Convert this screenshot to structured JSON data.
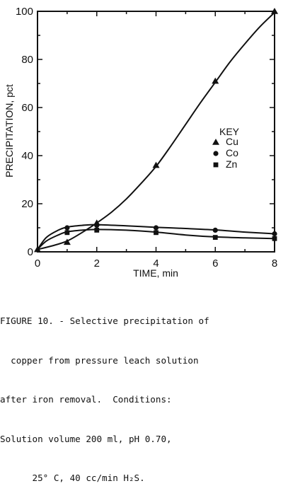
{
  "chart_data": {
    "type": "line",
    "xlabel": "TIME, min",
    "ylabel": "PRECIPITATION, pct",
    "xlim": [
      0,
      8
    ],
    "ylim": [
      0,
      100
    ],
    "xticks": [
      0,
      2,
      4,
      6,
      8
    ],
    "yticks": [
      0,
      20,
      40,
      60,
      80,
      100
    ],
    "grid": false,
    "legend_title": "KEY",
    "legend_position": "center-right",
    "series": [
      {
        "name": "Cu",
        "marker": "triangle",
        "x": [
          0,
          1,
          2,
          4,
          6,
          8
        ],
        "y": [
          1,
          4,
          12,
          36,
          71,
          100
        ],
        "curve": [
          [
            0,
            1
          ],
          [
            0.5,
            2.5
          ],
          [
            1,
            4.5
          ],
          [
            1.5,
            8
          ],
          [
            2,
            12
          ],
          [
            2.5,
            16.5
          ],
          [
            3,
            22
          ],
          [
            3.5,
            28.5
          ],
          [
            4,
            35.5
          ],
          [
            4.5,
            44
          ],
          [
            5,
            53
          ],
          [
            5.5,
            62
          ],
          [
            6,
            70.5
          ],
          [
            6.5,
            79
          ],
          [
            7,
            86.5
          ],
          [
            7.5,
            93.5
          ],
          [
            8,
            99.5
          ]
        ]
      },
      {
        "name": "Co",
        "marker": "circle",
        "x": [
          1,
          2,
          4,
          6,
          8
        ],
        "y": [
          10,
          11,
          10,
          9,
          7.5
        ],
        "curve": [
          [
            0,
            1
          ],
          [
            0.3,
            6
          ],
          [
            0.7,
            9
          ],
          [
            1,
            10.3
          ],
          [
            1.5,
            11
          ],
          [
            2,
            11.3
          ],
          [
            3,
            10.8
          ],
          [
            4,
            10.2
          ],
          [
            5,
            9.7
          ],
          [
            6,
            9.1
          ],
          [
            7,
            8.2
          ],
          [
            8,
            7.5
          ]
        ]
      },
      {
        "name": "Zn",
        "marker": "square",
        "x": [
          1,
          2,
          4,
          6,
          8
        ],
        "y": [
          8,
          9,
          8,
          6,
          5.5
        ],
        "curve": [
          [
            0,
            1
          ],
          [
            0.3,
            4.5
          ],
          [
            0.7,
            7
          ],
          [
            1,
            8.3
          ],
          [
            1.5,
            9
          ],
          [
            2,
            9.3
          ],
          [
            3,
            9
          ],
          [
            4,
            8.2
          ],
          [
            5,
            7
          ],
          [
            6,
            6.2
          ],
          [
            7,
            5.8
          ],
          [
            8,
            5.5
          ]
        ]
      }
    ]
  },
  "caption": {
    "lines": [
      "FIGURE 10. - Selective precipitation of",
      "  copper from pressure leach solution",
      "after iron removal.  Conditions:",
      "Solution volume 200 ml, pH 0.70,",
      "      25° C, 40 cc/min H₂S."
    ]
  }
}
